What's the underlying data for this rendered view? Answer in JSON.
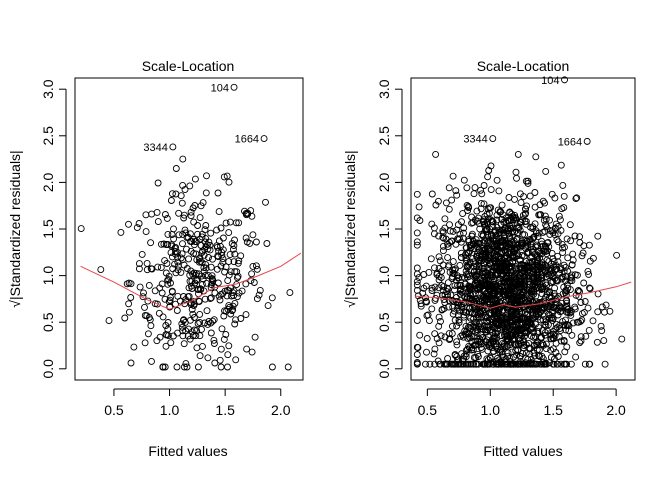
{
  "chart_data": [
    {
      "type": "scatter",
      "title": "Scale-Location",
      "xlabel": "Fitted values",
      "ylabel": "√|Standardized residuals|",
      "xlim": [
        0.15,
        2.2
      ],
      "ylim": [
        -0.12,
        3.12
      ],
      "x_ticks": [
        "0.5",
        "1.0",
        "1.5",
        "2.0"
      ],
      "y_ticks": [
        "0.0",
        "0.5",
        "1.0",
        "1.5",
        "2.0",
        "2.5",
        "3.0"
      ],
      "grid": false,
      "n_points_approx": 420,
      "labeled_points": [
        {
          "label": "104",
          "x": 1.58,
          "y": 3.02
        },
        {
          "label": "3344",
          "x": 1.03,
          "y": 2.38
        },
        {
          "label": "1664",
          "x": 1.85,
          "y": 2.47
        }
      ],
      "smoother": {
        "color": "#e8474b",
        "x": [
          0.2,
          0.5,
          0.8,
          1.0,
          1.2,
          1.4,
          1.6,
          1.8,
          2.0,
          2.18
        ],
        "y": [
          1.1,
          0.93,
          0.74,
          0.64,
          0.73,
          0.87,
          0.91,
          1.0,
          1.1,
          1.24
        ]
      }
    },
    {
      "type": "scatter",
      "title": "Scale-Location",
      "xlabel": "Fitted values",
      "ylabel": "√|Standardized residuals|",
      "xlim": [
        0.37,
        2.15
      ],
      "ylim": [
        -0.12,
        3.12
      ],
      "x_ticks": [
        "0.5",
        "1.0",
        "1.5",
        "2.0"
      ],
      "y_ticks": [
        "0.0",
        "0.5",
        "1.0",
        "1.5",
        "2.0",
        "2.5",
        "3.0"
      ],
      "grid": false,
      "n_points_approx": 2000,
      "labeled_points": [
        {
          "label": "104",
          "x": 1.59,
          "y": 3.1
        },
        {
          "label": "3344",
          "x": 1.02,
          "y": 2.47
        },
        {
          "label": "1664",
          "x": 1.77,
          "y": 2.44
        }
      ],
      "smoother": {
        "color": "#e8474b",
        "x": [
          0.4,
          0.6,
          0.8,
          1.0,
          1.1,
          1.2,
          1.3,
          1.4,
          1.6,
          1.8,
          2.0,
          2.12
        ],
        "y": [
          0.78,
          0.76,
          0.72,
          0.65,
          0.69,
          0.66,
          0.68,
          0.7,
          0.77,
          0.82,
          0.88,
          0.93
        ]
      }
    }
  ]
}
